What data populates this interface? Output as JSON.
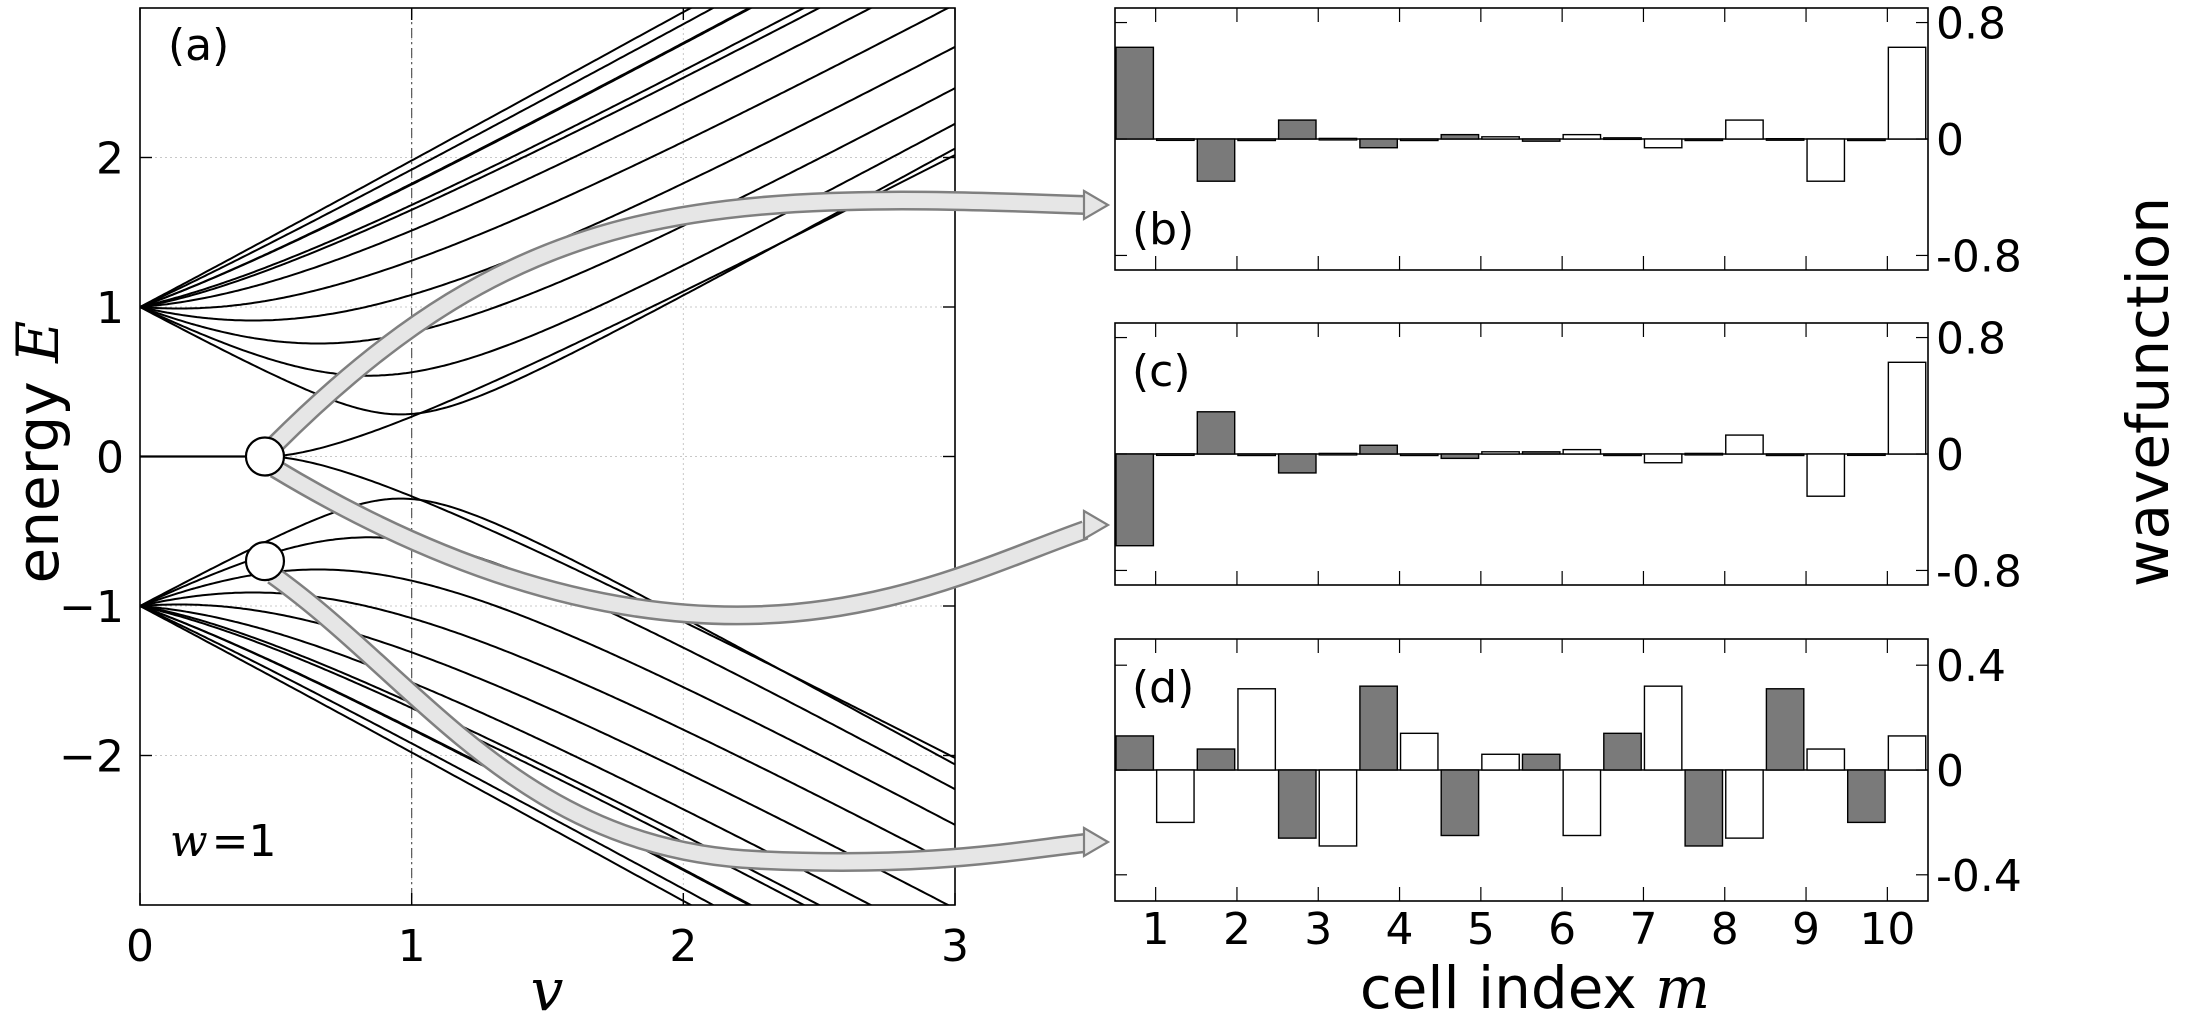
{
  "chart_data": [
    {
      "panel": "(a)",
      "type": "line",
      "annotation": "w = 1",
      "xlabel": "v",
      "ylabel": "energy E",
      "xlim": [
        0,
        3
      ],
      "ylim": [
        -3,
        3
      ],
      "xticks": [
        "0",
        "1",
        "2",
        "3"
      ],
      "yticks": [
        {
          "value": -2,
          "label": "−2"
        },
        {
          "value": -1,
          "label": "−1"
        },
        {
          "value": 0,
          "label": "0"
        },
        {
          "value": 1,
          "label": "1"
        },
        {
          "value": 2,
          "label": "2"
        }
      ],
      "grid": true,
      "vertical_marker_x": 1,
      "series_description": "band energies E(v) of a 10-cell chain, Rice-Mele type: E = ±v ± sqrt(w^2 - ...) families fanning out from E = ±1 at v = 0, plus a doubly-degenerate zero mode for v < 0.47",
      "highlighted_points": [
        {
          "v": 0.46,
          "E": 0.0
        },
        {
          "v": 0.46,
          "E": -0.7
        }
      ]
    },
    {
      "panel": "(b)",
      "type": "bar",
      "ylabel": "wavefunction",
      "ylim": [
        -0.9,
        0.9
      ],
      "yticks": [
        "0.8",
        "0",
        "-0.8"
      ],
      "categories": [
        "1",
        "2",
        "3",
        "4",
        "5",
        "6",
        "7",
        "8",
        "9",
        "10"
      ],
      "series": [
        {
          "values": [
            0.63,
            -0.29,
            0.13,
            -0.06,
            0.03,
            -0.015,
            0.008,
            -0.004,
            0.002,
            -0.001
          ]
        },
        {
          "values": [
            0.001,
            -0.002,
            0.004,
            -0.008,
            0.015,
            0.03,
            -0.06,
            0.13,
            -0.29,
            0.63
          ]
        }
      ]
    },
    {
      "panel": "(c)",
      "type": "bar",
      "ylim": [
        -0.9,
        0.9
      ],
      "yticks": [
        "0.8",
        "0",
        "-0.8"
      ],
      "categories": [
        "1",
        "2",
        "3",
        "4",
        "5",
        "6",
        "7",
        "8",
        "9",
        "10"
      ],
      "series": [
        {
          "values": [
            -0.63,
            0.29,
            -0.13,
            0.06,
            -0.03,
            0.015,
            -0.008,
            0.004,
            -0.002,
            0.001
          ]
        },
        {
          "values": [
            0.001,
            -0.002,
            0.004,
            -0.008,
            0.015,
            0.03,
            -0.06,
            0.13,
            -0.29,
            0.63
          ]
        }
      ]
    },
    {
      "panel": "(d)",
      "type": "bar",
      "ylim": [
        -0.5,
        0.5
      ],
      "yticks": [
        "0.4",
        "0",
        "-0.4"
      ],
      "xlabel": "cell index m",
      "categories": [
        "1",
        "2",
        "3",
        "4",
        "5",
        "6",
        "7",
        "8",
        "9",
        "10"
      ],
      "series": [
        {
          "values": [
            0.13,
            0.08,
            -0.26,
            0.32,
            -0.25,
            0.06,
            0.14,
            -0.29,
            0.31,
            -0.2
          ]
        },
        {
          "values": [
            -0.2,
            0.31,
            -0.29,
            0.14,
            0.06,
            -0.25,
            0.32,
            -0.26,
            0.08,
            0.13
          ]
        }
      ]
    }
  ],
  "colors": {
    "site_a_fill": "#7a7a7a",
    "site_b_fill": "#ffffff",
    "arrow_fill": "#e6e6e6",
    "arrow_stroke": "#808080"
  },
  "labels": {
    "a": "(a)",
    "b": "(b)",
    "c": "(c)",
    "d": "(d)",
    "w_var": "w",
    "w_eq": "=1",
    "energy_word": "energy ",
    "energy_var": "E",
    "v_var": "v",
    "cell_word": "cell index ",
    "cell_var": "m",
    "wavefunction": "wavefunction"
  }
}
